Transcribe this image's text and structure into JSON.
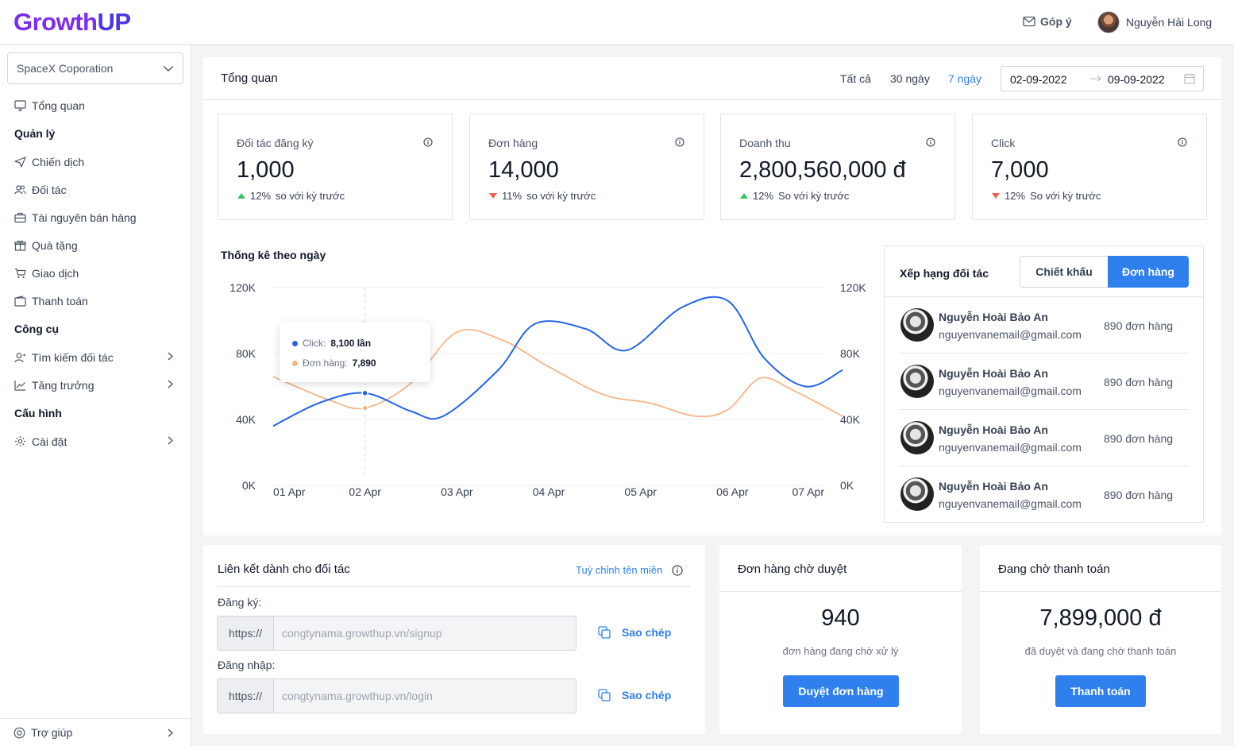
{
  "header": {
    "logo_a": "Growth",
    "logo_b": "UP",
    "feedback": "Góp ý",
    "user_name": "Nguyễn Hải Long"
  },
  "sidebar": {
    "company": "SpaceX Coporation",
    "overview": "Tổng quan",
    "sections": {
      "manage": "Quản lý",
      "tools": "Công cụ",
      "config": "Cấu hình"
    },
    "items": {
      "campaign": "Chiến dịch",
      "partner": "Đối tác",
      "sales_resources": "Tài nguyên bán hàng",
      "gifts": "Quà tặng",
      "transactions": "Giao dịch",
      "payment": "Thanh toán",
      "find_partner": "Tìm kiếm đối tác",
      "growth": "Tăng trưởng",
      "settings": "Cài đặt"
    },
    "help": "Trợ giúp"
  },
  "overview": {
    "title": "Tổng quan",
    "ranges": [
      "Tất cả",
      "30 ngày",
      "7 ngày"
    ],
    "active_range": "7 ngày",
    "date_from": "02-09-2022",
    "date_to": "09-09-2022"
  },
  "stats": [
    {
      "label": "Đối tác đăng ký",
      "value": "1,000",
      "change": "12%",
      "compare": "so với kỳ trước",
      "trend": "up"
    },
    {
      "label": "Đơn hàng",
      "value": "14,000",
      "change": "11%",
      "compare": "so với kỳ trước",
      "trend": "down"
    },
    {
      "label": "Doanh thu",
      "value": "2,800,560,000 đ",
      "change": "12%",
      "compare": "So với kỳ trước",
      "trend": "up"
    },
    {
      "label": "Click",
      "value": "7,000",
      "change": "12%",
      "compare": "So với kỳ trước",
      "trend": "down"
    }
  ],
  "chart_data": {
    "type": "line",
    "title": "Thống kê theo ngày",
    "categories": [
      "01 Apr",
      "02 Apr",
      "03 Apr",
      "04 Apr",
      "05 Apr",
      "06 Apr",
      "07 Apr"
    ],
    "y_ticks": [
      "120K",
      "80K",
      "40K",
      "0K"
    ],
    "ylim": [
      0,
      120000
    ],
    "grid": true,
    "series": [
      {
        "name": "Click",
        "color": "#2563eb",
        "points": [
          [
            0,
            36000
          ],
          [
            0.5,
            50000
          ],
          [
            1.0,
            56000
          ],
          [
            1.5,
            45000
          ],
          [
            1.85,
            42000
          ],
          [
            2.45,
            70000
          ],
          [
            2.85,
            98000
          ],
          [
            3.4,
            95000
          ],
          [
            3.85,
            82000
          ],
          [
            4.45,
            108000
          ],
          [
            4.95,
            112000
          ],
          [
            5.35,
            77000
          ],
          [
            5.8,
            60000
          ],
          [
            6.2,
            70000
          ]
        ]
      },
      {
        "name": "Đơn hàng",
        "color": "#f5b58a",
        "points": [
          [
            0,
            66000
          ],
          [
            0.6,
            52000
          ],
          [
            1.0,
            47000
          ],
          [
            1.5,
            62000
          ],
          [
            2.0,
            93000
          ],
          [
            2.5,
            88000
          ],
          [
            3.0,
            72000
          ],
          [
            3.6,
            55000
          ],
          [
            4.1,
            50000
          ],
          [
            4.6,
            42000
          ],
          [
            4.95,
            46000
          ],
          [
            5.3,
            65000
          ],
          [
            5.65,
            58000
          ],
          [
            6.2,
            42000
          ]
        ]
      }
    ],
    "tooltip": {
      "click_label": "Click:",
      "click_value": "8,100 lần",
      "order_label": "Đơn hàng:",
      "order_value": "7,890"
    }
  },
  "ranking": {
    "title": "Xếp hạng đối tác",
    "tab_discount": "Chiết khấu",
    "tab_orders": "Đơn hàng",
    "rows": [
      {
        "name": "Nguyễn Hoài Bảo An",
        "email": "nguyenvanemail@gmail.com",
        "count": "890 đơn hàng"
      },
      {
        "name": "Nguyễn Hoài Bảo An",
        "email": "nguyenvanemail@gmail.com",
        "count": "890 đơn hàng"
      },
      {
        "name": "Nguyễn Hoài Bảo An",
        "email": "nguyenvanemail@gmail.com",
        "count": "890 đơn hàng"
      },
      {
        "name": "Nguyễn Hoài Bảo An",
        "email": "nguyenvanemail@gmail.com",
        "count": "890 đơn hàng"
      }
    ]
  },
  "links": {
    "title": "Liên kết dành cho đối tác",
    "customize": "Tuỳ chỉnh tên miền",
    "signup_label": "Đăng ký:",
    "signup_prefix": "https://",
    "signup_url": "congtynama.growthup.vn/signup",
    "login_label": "Đăng nhập:",
    "login_prefix": "https://",
    "login_url": "congtynama.growthup.vn/login",
    "copy": "Sao chép"
  },
  "pending_orders": {
    "title": "Đơn hàng chờ duyệt",
    "value": "940",
    "sub": "đơn hàng đang chờ xử lý",
    "button": "Duyệt đơn hàng"
  },
  "pending_payment": {
    "title": "Đang chờ thanh toán",
    "value": "7,899,000 đ",
    "sub": "đã duyệt và đang chờ thanh toán",
    "button": "Thanh toán"
  },
  "colors": {
    "primary": "#2f80ed",
    "up": "#34c759",
    "down": "#f0624a"
  }
}
